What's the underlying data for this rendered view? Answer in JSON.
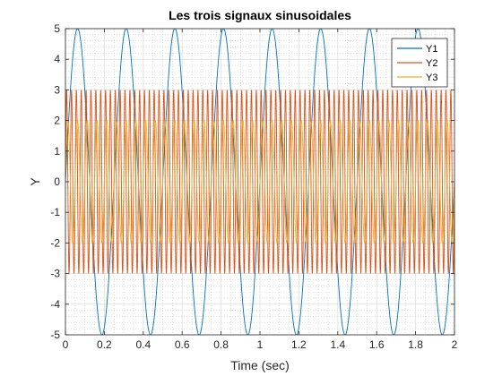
{
  "chart_data": {
    "type": "line",
    "title": "Les trois signaux sinusoidales",
    "xlabel": "Time (sec)",
    "ylabel": "Y",
    "xlim": [
      0,
      2
    ],
    "ylim": [
      -5,
      5
    ],
    "xticks": [
      "0",
      "0.2",
      "0.4",
      "0.6",
      "0.8",
      "1",
      "1.2",
      "1.4",
      "1.6",
      "1.8",
      "2"
    ],
    "yticks": [
      "5",
      "4",
      "3",
      "2",
      "1",
      "0",
      "-1",
      "-2",
      "-3",
      "-4",
      "-5"
    ],
    "grid": true,
    "minor_grid": true,
    "legend_position": "top-right",
    "series": [
      {
        "name": "Y1",
        "color": "#0072BD",
        "amplitude": 5,
        "frequency": 4
      },
      {
        "name": "Y2",
        "color": "#D95319",
        "amplitude": 3,
        "frequency": 40
      },
      {
        "name": "Y3",
        "color": "#EDB120",
        "amplitude": 2,
        "frequency": 20
      }
    ]
  }
}
